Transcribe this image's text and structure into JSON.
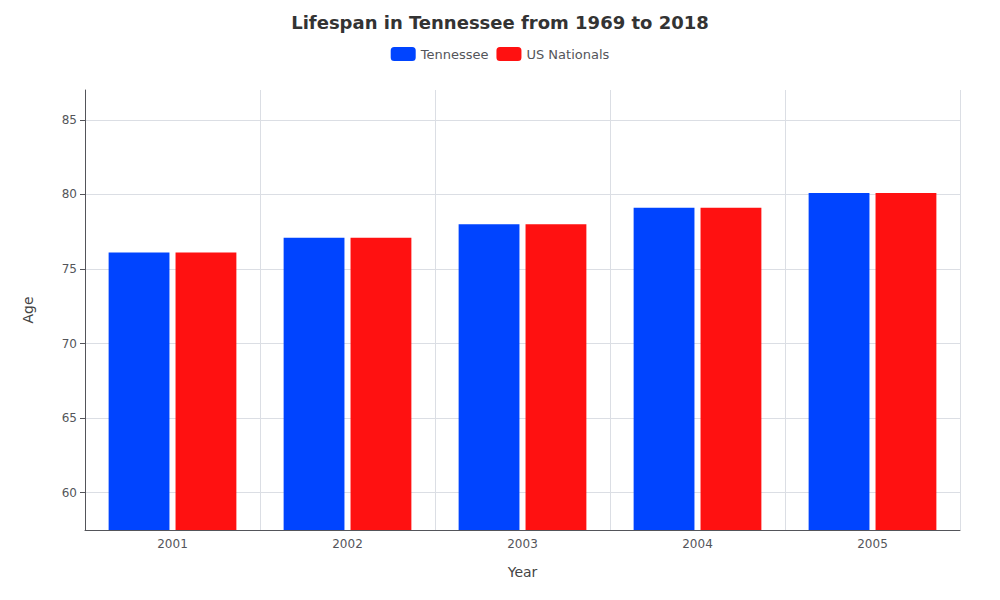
{
  "chart_data": {
    "type": "bar",
    "title": "Lifespan in Tennessee from 1969 to 2018",
    "x_label": "Year",
    "y_label": "Age",
    "categories": [
      "2001",
      "2002",
      "2003",
      "2004",
      "2005"
    ],
    "series": [
      {
        "name": "Tennessee",
        "color": "#0044ff",
        "values": [
          76.1,
          77.1,
          78.0,
          79.1,
          80.1
        ]
      },
      {
        "name": "US Nationals",
        "color": "#ff1111",
        "values": [
          76.1,
          77.1,
          78.0,
          79.1,
          80.1
        ]
      }
    ],
    "ylim": [
      57.5,
      87
    ],
    "yticks": [
      60,
      65,
      70,
      75,
      80,
      85
    ],
    "grid": true,
    "legend": "top"
  }
}
